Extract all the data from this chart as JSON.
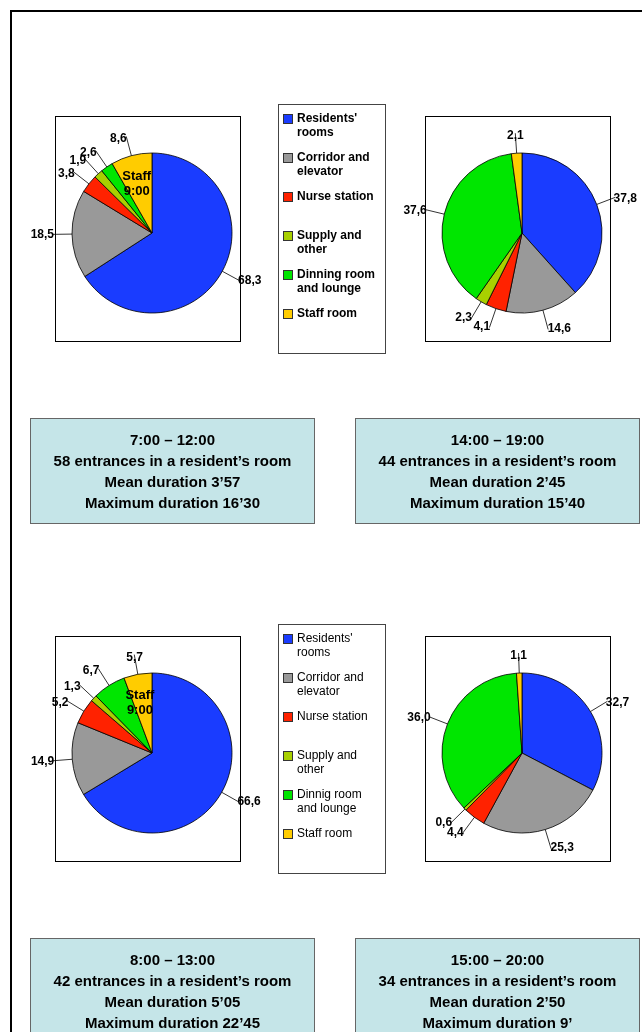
{
  "chart_data": [
    {
      "type": "pie",
      "categories": [
        "Residents' rooms",
        "Corridor and elevator",
        "Nurse station",
        "Supply and other",
        "Dinning room and lounge",
        "Staff room"
      ],
      "values": [
        68.3,
        18.5,
        3.8,
        1.9,
        2.6,
        8.6
      ],
      "value_labels": [
        "68,3",
        "18,5",
        "3,8",
        "1,9",
        "2,6",
        "8,6"
      ],
      "colors": [
        "#1a3cff",
        "#999999",
        "#ff2200",
        "#a8d000",
        "#00e600",
        "#ffcc00"
      ],
      "legend": "right",
      "annotations": [
        {
          "text": "Staff 9:00",
          "x": "Staff room"
        },
        "7:00 – 12:00",
        "58 entrances in a resident’s room",
        "Mean duration 3’57",
        "Maximum duration 16’30"
      ]
    },
    {
      "type": "pie",
      "categories": [
        null,
        null,
        null,
        null,
        null,
        null
      ],
      "values": [
        37.8,
        14.6,
        4.1,
        2.3,
        37.6,
        2.1
      ],
      "value_labels": [
        "37,8",
        "14,6",
        "4,1",
        "2,3",
        "37,6",
        "2,1"
      ],
      "colors": [
        "#1a3cff",
        "#999999",
        "#ff2200",
        "#a8d000",
        "#00e600",
        "#ffcc00"
      ],
      "annotations": [
        "14:00 – 19:00",
        "44 entrances in a resident’s room",
        "Mean duration 2’45",
        "Maximum duration 15’40"
      ]
    },
    {
      "type": "pie",
      "categories": [
        "Residents' rooms",
        "Corridor and elevator",
        "Nurse station",
        "Supply and other",
        "Dinnig room and lounge",
        "Staff room"
      ],
      "values": [
        66.6,
        14.9,
        5.2,
        1.3,
        6.7,
        5.7
      ],
      "value_labels": [
        "66,6",
        "14,9",
        "5,2",
        "1,3",
        "6,7",
        "5,7"
      ],
      "colors": [
        "#1a3cff",
        "#999999",
        "#ff2200",
        "#a8d000",
        "#00e600",
        "#ffcc00"
      ],
      "legend": "right",
      "annotations": [
        {
          "text": "Staff 9:00",
          "x": "Staff room"
        },
        "8:00 – 13:00",
        "42 entrances in a resident’s room",
        "Mean duration 5’05",
        "Maximum duration 22’45"
      ]
    },
    {
      "type": "pie",
      "categories": [
        null,
        null,
        null,
        null,
        null,
        null
      ],
      "values": [
        32.7,
        25.3,
        4.4,
        0.6,
        36.0,
        1.1
      ],
      "value_labels": [
        "32,7",
        "25,3",
        "4,4",
        "0,6",
        "36,0",
        "1,1"
      ],
      "colors": [
        "#1a3cff",
        "#999999",
        "#ff2200",
        "#a8d000",
        "#00e600",
        "#ffcc00"
      ],
      "annotations": [
        "15:00 – 20:00",
        "34 entrances in a resident’s room",
        "Mean duration 2’50",
        "Maximum duration 9’"
      ]
    }
  ]
}
